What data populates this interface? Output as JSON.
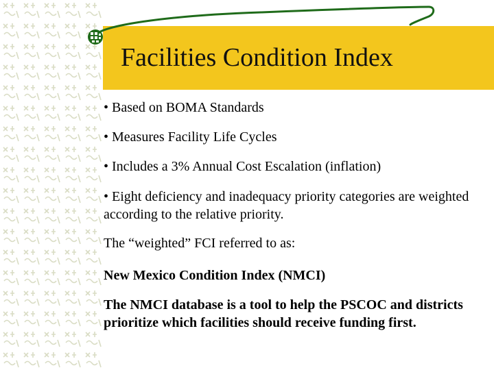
{
  "slide": {
    "title": "Facilities Condition Index",
    "paragraphs": [
      {
        "text": "• Based on BOMA Standards",
        "bold": false
      },
      {
        "text": "• Measures Facility Life Cycles",
        "bold": false
      },
      {
        "text": "• Includes a 3% Annual Cost Escalation (inflation)",
        "bold": false
      },
      {
        "text": "• Eight deficiency and inadequacy priority categories are weighted according to the relative priority.",
        "bold": false
      },
      {
        "text": "The “weighted” FCI referred to as:",
        "bold": false
      },
      {
        "text": "New Mexico Condition Index (NMCI)",
        "bold": true
      },
      {
        "text": "The NMCI database is a tool to help the PSCOC and districts prioritize which facilities should receive funding first.",
        "bold": true
      }
    ]
  },
  "colors": {
    "title_band": "#f3c61d",
    "accent_green": "#1f6b1a",
    "pattern": "#d9dcc4"
  }
}
